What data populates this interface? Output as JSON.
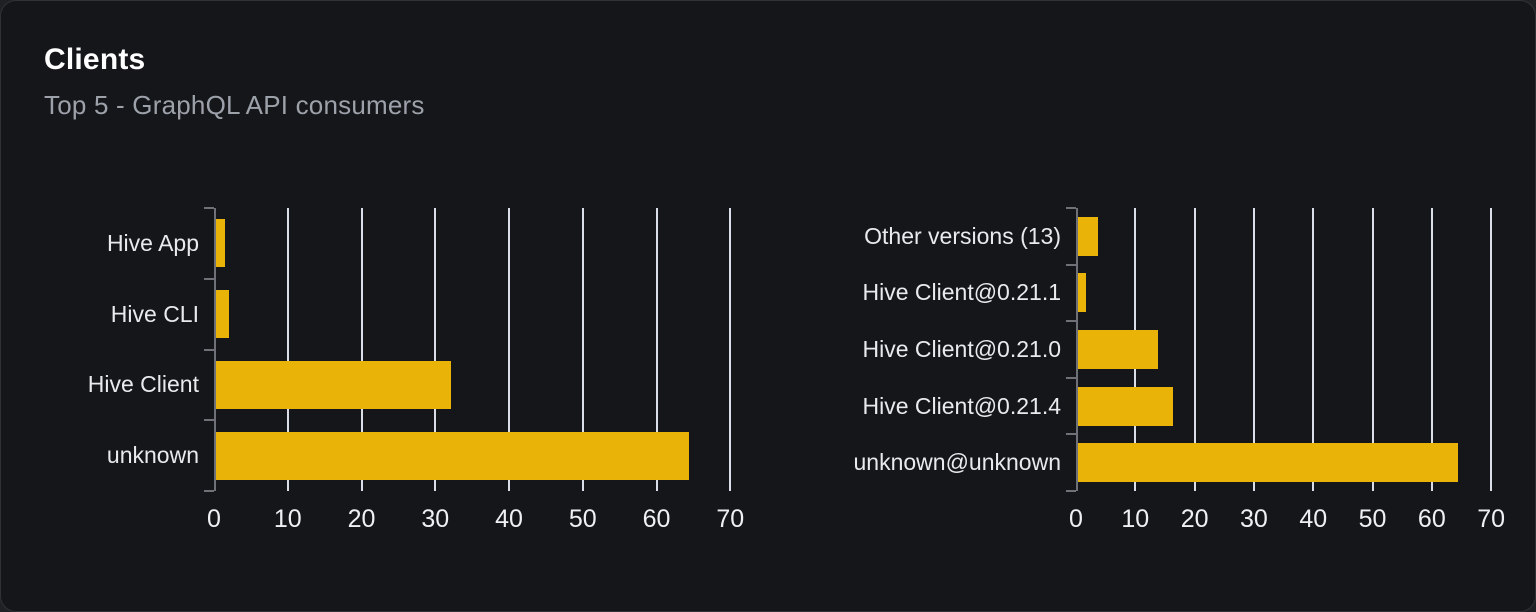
{
  "header": {
    "title": "Clients",
    "subtitle": "Top 5 - GraphQL API consumers"
  },
  "colors": {
    "bar": "#eab308",
    "gridline": "#d9dee8",
    "axis": "#6e7278",
    "card_background": "#14161a",
    "title_text": "#ffffff",
    "subtitle_text": "#9da1a9"
  },
  "chart_data": [
    {
      "type": "bar",
      "orientation": "horizontal",
      "title": "",
      "categories": [
        "Hive App",
        "Hive CLI",
        "Hive Client",
        "unknown"
      ],
      "values": [
        1.5,
        2.1,
        32.2,
        64.4
      ],
      "x_ticks": [
        0,
        10,
        20,
        30,
        40,
        50,
        60,
        70
      ],
      "xlim": [
        0,
        72
      ],
      "grid": "vertical",
      "legend": "none"
    },
    {
      "type": "bar",
      "orientation": "horizontal",
      "title": "",
      "categories": [
        "Other versions (13)",
        "Hive Client@0.21.1",
        "Hive Client@0.21.0",
        "Hive Client@0.21.4",
        "unknown@unknown"
      ],
      "values": [
        3.7,
        1.7,
        13.8,
        16.4,
        64.4
      ],
      "x_ticks": [
        0,
        10,
        20,
        30,
        40,
        50,
        60,
        70
      ],
      "xlim": [
        0,
        72
      ],
      "grid": "vertical",
      "legend": "none"
    }
  ]
}
